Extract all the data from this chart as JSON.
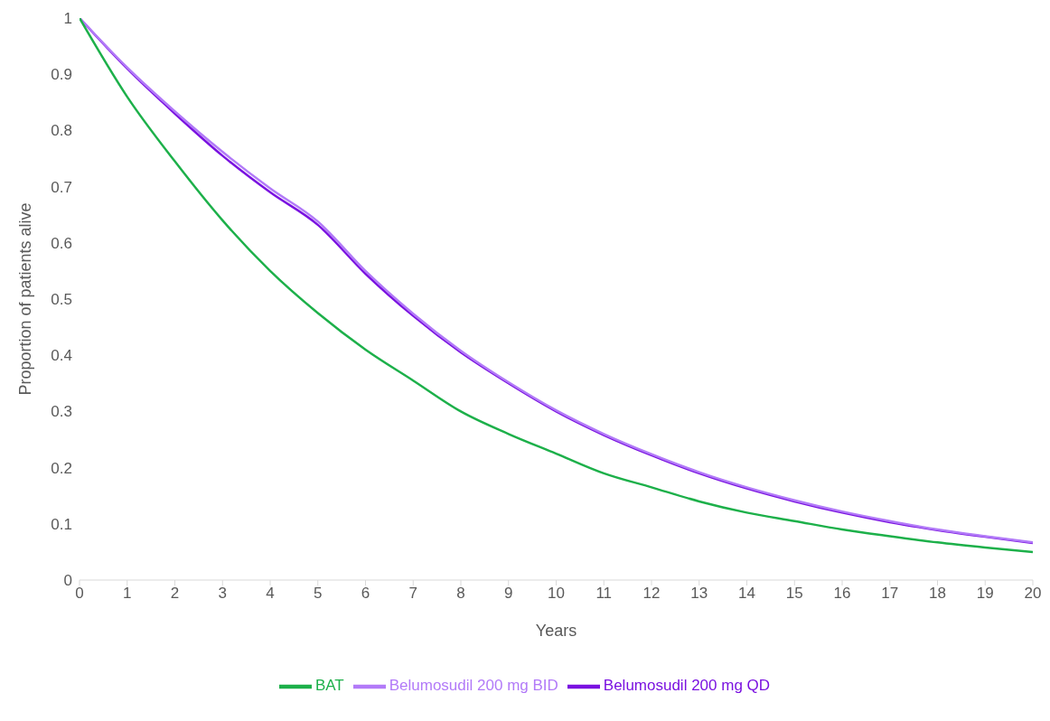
{
  "chart_data": {
    "type": "line",
    "xlabel": "Years",
    "ylabel": "Proportion of patients alive",
    "x": [
      0,
      1,
      2,
      3,
      4,
      5,
      6,
      7,
      8,
      9,
      10,
      11,
      12,
      13,
      14,
      15,
      16,
      17,
      18,
      19,
      20
    ],
    "series": [
      {
        "name": "Belumosudil 200 mg QD",
        "color": "#7a12e0",
        "values": [
          1,
          0.91,
          0.83,
          0.755,
          0.69,
          0.632,
          0.545,
          0.47,
          0.405,
          0.35,
          0.3,
          0.258,
          0.222,
          0.19,
          0.163,
          0.14,
          0.12,
          0.103,
          0.089,
          0.077,
          0.066
        ]
      },
      {
        "name": "Belumosudil 200 mg BID",
        "color": "#b27af8",
        "values": [
          1,
          0.912,
          0.834,
          0.762,
          0.697,
          0.638,
          0.55,
          0.474,
          0.408,
          0.352,
          0.302,
          0.26,
          0.224,
          0.192,
          0.165,
          0.142,
          0.122,
          0.105,
          0.09,
          0.078,
          0.067
        ]
      },
      {
        "name": "BAT",
        "color": "#1db04a",
        "values": [
          1,
          0.86,
          0.745,
          0.64,
          0.55,
          0.475,
          0.41,
          0.355,
          0.3,
          0.26,
          0.225,
          0.19,
          0.165,
          0.14,
          0.12,
          0.105,
          0.09,
          0.078,
          0.067,
          0.058,
          0.05
        ]
      }
    ],
    "xlim": [
      0,
      20
    ],
    "xticks": [
      0,
      1,
      2,
      3,
      4,
      5,
      6,
      7,
      8,
      9,
      10,
      11,
      12,
      13,
      14,
      15,
      16,
      17,
      18,
      19,
      20
    ],
    "ylim": [
      0,
      1
    ],
    "yticks": [
      0,
      0.1,
      0.2,
      0.3,
      0.4,
      0.5,
      0.6,
      0.7,
      0.8,
      0.9,
      1
    ],
    "grid": false,
    "legend": "bottom",
    "marker": "none",
    "line_style": "solid"
  }
}
